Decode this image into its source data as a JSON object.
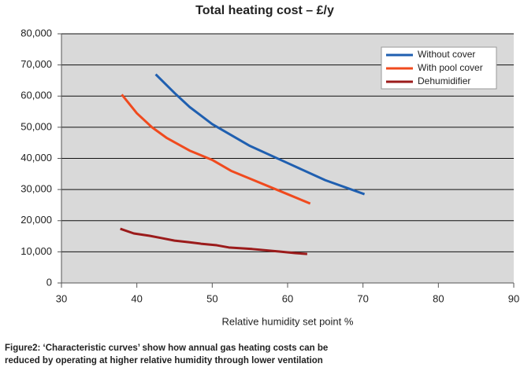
{
  "chart_data": {
    "type": "line",
    "title": "Total heating cost – £/y",
    "x_label": "Relative humidity set point %",
    "caption": [
      "Figure2: ‘Characteristic curves’ show how annual gas heating costs can be",
      "reduced by operating at higher relative humidity through lower ventilation"
    ],
    "xlim": [
      30,
      90
    ],
    "xticks": [
      30,
      40,
      50,
      60,
      70,
      80,
      90
    ],
    "ylim": [
      0,
      80000
    ],
    "yticks": [
      0,
      {
        "value": 10000,
        "label": "10,000"
      },
      {
        "value": 20000,
        "label": "20,000"
      },
      {
        "value": 30000,
        "label": "30,000"
      },
      {
        "value": 40000,
        "label": "40,000"
      },
      {
        "value": 50000,
        "label": "50,000"
      },
      {
        "value": 60000,
        "label": "60,000"
      },
      {
        "value": 70000,
        "label": "70,000"
      },
      {
        "value": 80000,
        "label": "80,000"
      }
    ],
    "grid": true,
    "legend": "top-right",
    "series": [
      {
        "name": "Without cover",
        "color": "#1f5fb0",
        "x": [
          42.5,
          45,
          47,
          50,
          52.5,
          55,
          60,
          65,
          70.2
        ],
        "values": [
          67000,
          61000,
          56500,
          51000,
          47500,
          44000,
          38500,
          33000,
          28500
        ]
      },
      {
        "name": "With pool cover",
        "color": "#f04a1e",
        "x": [
          38,
          40,
          42,
          44,
          47,
          50,
          52.5,
          55,
          60,
          63
        ],
        "values": [
          60500,
          54500,
          50000,
          46500,
          42500,
          39500,
          36000,
          33500,
          28500,
          25500
        ]
      },
      {
        "name": "Dehumidifier",
        "color": "#9b1b1b",
        "x": [
          37.8,
          39.6,
          41.7,
          43.3,
          45,
          46.9,
          48.5,
          50.6,
          52.2,
          55.3,
          58.9,
          61,
          62.6
        ],
        "values": [
          17400,
          15900,
          15150,
          14400,
          13600,
          13100,
          12600,
          12100,
          11400,
          10900,
          10100,
          9600,
          9300
        ]
      }
    ]
  }
}
